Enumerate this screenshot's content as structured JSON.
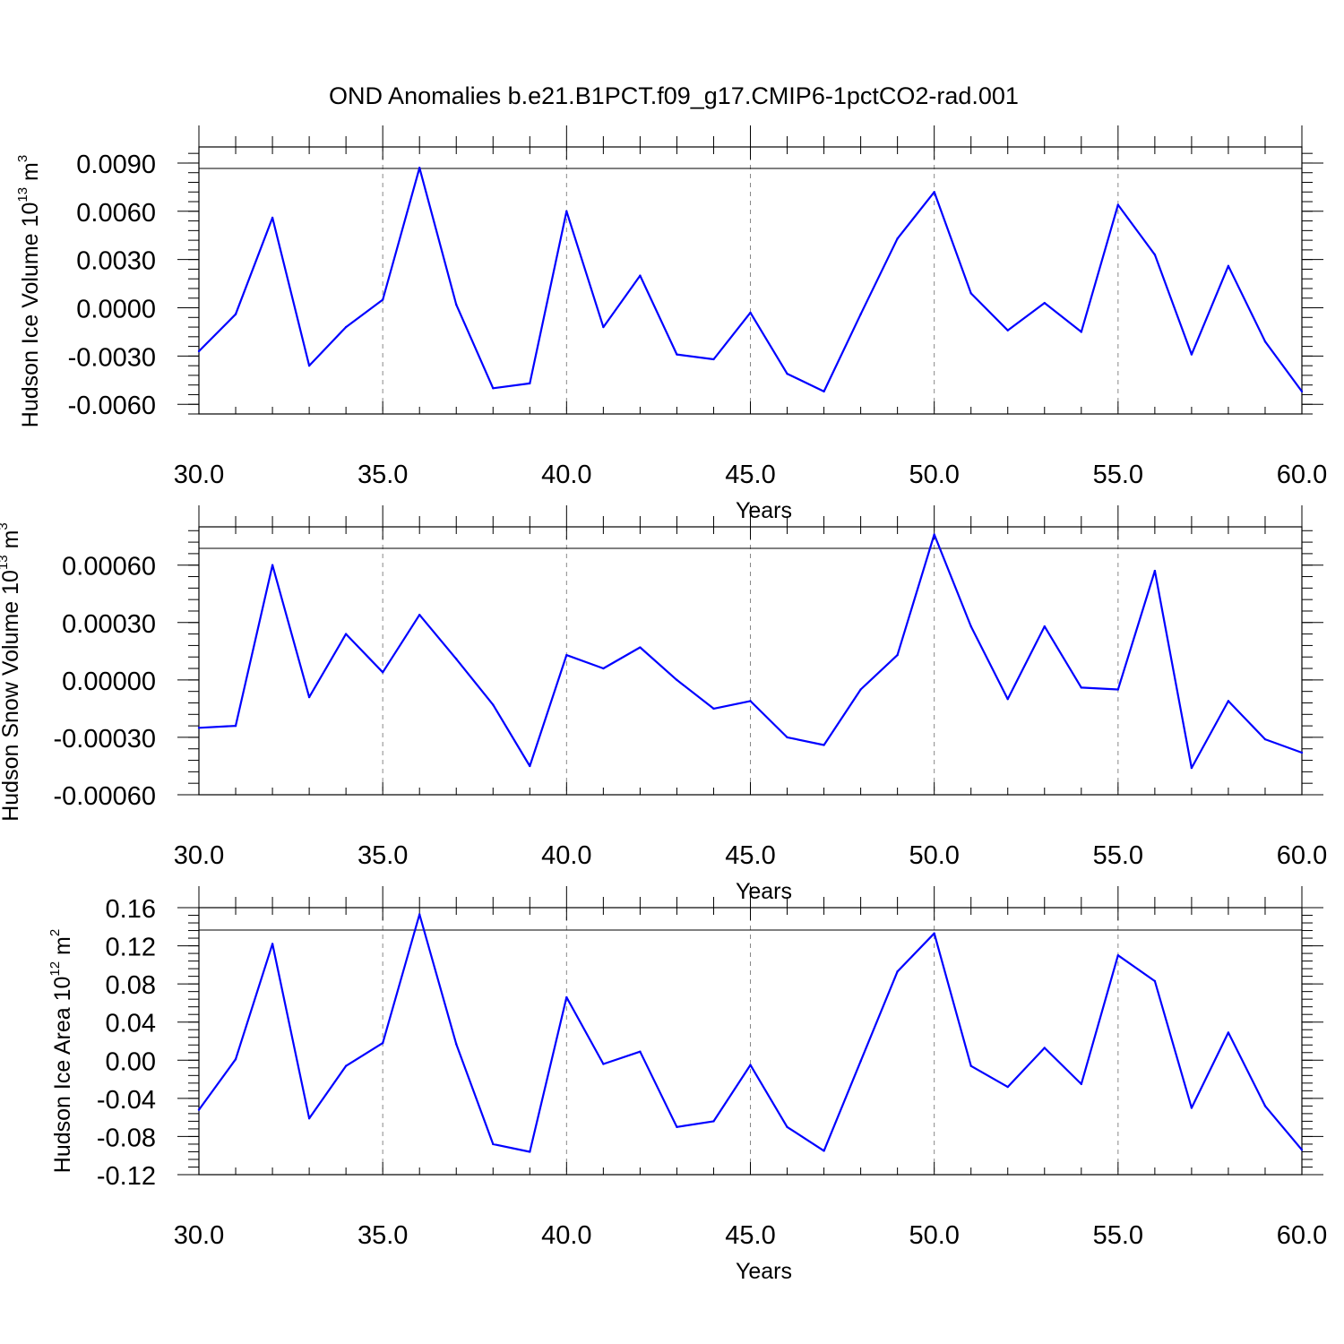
{
  "title": "OND Anomalies b.e21.B1PCT.f09_g17.CMIP6-1pctCO2-rad.001",
  "colors": {
    "series": "#0000ff",
    "grid": "#888888",
    "axes": "#000000"
  },
  "chart_data": [
    {
      "type": "line",
      "ylabel": "Hudson Ice Volume 10",
      "ylabel_exp": "13",
      "ylabel_unit": " m",
      "ylabel_unit_exp": "3",
      "xlabel": "Years",
      "xlim": [
        30,
        60
      ],
      "ylim": [
        -0.0066,
        0.01
      ],
      "xticks": [
        30,
        35,
        40,
        45,
        50,
        55,
        60
      ],
      "xtick_labels": [
        "30.0",
        "35.0",
        "40.0",
        "45.0",
        "50.0",
        "55.0",
        "60.0"
      ],
      "yticks": [
        -0.006,
        -0.003,
        0.0,
        0.003,
        0.006,
        0.009
      ],
      "ytick_labels": [
        "-0.0060",
        "-0.0030",
        "0.0000",
        "0.0030",
        "0.0060",
        "0.0090"
      ],
      "grid_x": [
        35,
        40,
        45,
        50,
        55
      ],
      "x": [
        30,
        31,
        32,
        33,
        34,
        35,
        36,
        37,
        38,
        39,
        40,
        41,
        42,
        43,
        44,
        45,
        46,
        47,
        48,
        49,
        50,
        51,
        52,
        53,
        54,
        55,
        56,
        57,
        58,
        59,
        60
      ],
      "y": [
        -0.0027,
        -0.0004,
        0.0056,
        -0.0036,
        -0.0012,
        0.0005,
        0.0087,
        0.0002,
        -0.005,
        -0.0047,
        0.006,
        -0.0012,
        0.002,
        -0.0029,
        -0.0032,
        -0.0003,
        -0.0041,
        -0.0052,
        -0.0004,
        0.0043,
        0.0072,
        0.0009,
        -0.0014,
        0.0003,
        -0.0015,
        0.0064,
        0.0033,
        -0.0029,
        0.0026,
        -0.0021,
        -0.0052
      ]
    },
    {
      "type": "line",
      "ylabel": "Hudson Snow Volume 10",
      "ylabel_exp": "13",
      "ylabel_unit": " m",
      "ylabel_unit_exp": "3",
      "xlabel": "Years",
      "xlim": [
        30,
        60
      ],
      "ylim": [
        -0.0006,
        0.0008
      ],
      "xticks": [
        30,
        35,
        40,
        45,
        50,
        55,
        60
      ],
      "xtick_labels": [
        "30.0",
        "35.0",
        "40.0",
        "45.0",
        "50.0",
        "55.0",
        "60.0"
      ],
      "yticks": [
        -0.0006,
        -0.0003,
        0.0,
        0.0003,
        0.0006
      ],
      "ytick_labels": [
        "-0.00060",
        "-0.00030",
        "0.00000",
        "0.00030",
        "0.00060"
      ],
      "grid_x": [
        35,
        40,
        45,
        50,
        55
      ],
      "x": [
        30,
        31,
        32,
        33,
        34,
        35,
        36,
        37,
        38,
        39,
        40,
        41,
        42,
        43,
        44,
        45,
        46,
        47,
        48,
        49,
        50,
        51,
        52,
        53,
        54,
        55,
        56,
        57,
        58,
        59,
        60
      ],
      "y": [
        -0.00025,
        -0.00024,
        0.0006,
        -9e-05,
        0.00024,
        4e-05,
        0.00034,
        0.00011,
        -0.00013,
        -0.00045,
        0.00013,
        6e-05,
        0.00017,
        0.0,
        -0.00015,
        -0.00011,
        -0.0003,
        -0.00034,
        -5e-05,
        0.00013,
        0.00076,
        0.00028,
        -0.0001,
        0.00028,
        -4e-05,
        -5e-05,
        0.00057,
        -0.00046,
        -0.00011,
        -0.00031,
        -0.00038
      ]
    },
    {
      "type": "line",
      "ylabel": "Hudson Ice Area 10",
      "ylabel_exp": "12",
      "ylabel_unit": " m",
      "ylabel_unit_exp": "2",
      "xlabel": "Years",
      "xlim": [
        30,
        60
      ],
      "ylim": [
        -0.12,
        0.16
      ],
      "xticks": [
        30,
        35,
        40,
        45,
        50,
        55,
        60
      ],
      "xtick_labels": [
        "30.0",
        "35.0",
        "40.0",
        "45.0",
        "50.0",
        "55.0",
        "60.0"
      ],
      "yticks": [
        -0.12,
        -0.08,
        -0.04,
        0.0,
        0.04,
        0.08,
        0.12,
        0.16
      ],
      "ytick_labels": [
        "-0.12",
        "-0.08",
        "-0.04",
        "0.00",
        "0.04",
        "0.08",
        "0.12",
        "0.16"
      ],
      "grid_x": [
        35,
        40,
        45,
        50,
        55
      ],
      "x": [
        30,
        31,
        32,
        33,
        34,
        35,
        36,
        37,
        38,
        39,
        40,
        41,
        42,
        43,
        44,
        45,
        46,
        47,
        48,
        49,
        50,
        51,
        52,
        53,
        54,
        55,
        56,
        57,
        58,
        59,
        60
      ],
      "y": [
        -0.052,
        0.001,
        0.122,
        -0.061,
        -0.006,
        0.018,
        0.153,
        0.017,
        -0.088,
        -0.096,
        0.066,
        -0.004,
        0.009,
        -0.07,
        -0.064,
        -0.005,
        -0.07,
        -0.095,
        -0.001,
        0.093,
        0.133,
        -0.006,
        -0.028,
        0.013,
        -0.025,
        0.11,
        0.083,
        -0.05,
        0.029,
        -0.048,
        -0.094
      ]
    }
  ]
}
